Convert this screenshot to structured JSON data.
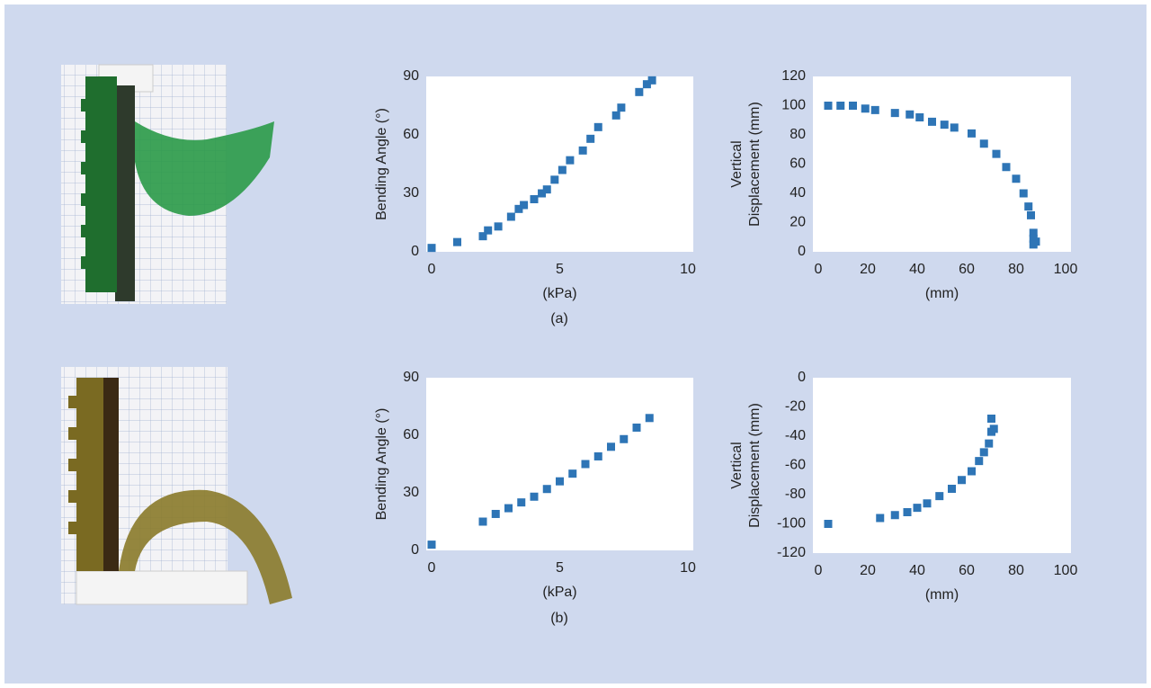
{
  "chart_data": [
    {
      "type": "scatter",
      "xlabel": "(kPa)",
      "ylabel": [
        "Bending Angle (°)"
      ],
      "color": "#2e75b6",
      "x": [
        0,
        1,
        2,
        2.2,
        2.6,
        3.1,
        3.4,
        3.6,
        4,
        4.3,
        4.5,
        4.8,
        5.1,
        5.4,
        5.9,
        6.2,
        6.5,
        7.2,
        7.4,
        8.1,
        8.4,
        8.6
      ],
      "values": [
        2,
        5,
        8,
        11,
        13,
        18,
        22,
        24,
        27,
        30,
        32,
        37,
        42,
        47,
        52,
        58,
        64,
        70,
        74,
        82,
        86,
        88
      ],
      "xlim": [
        0,
        10
      ],
      "xticks": [
        0,
        5,
        10
      ],
      "ylim": [
        0,
        90
      ],
      "yticks": [
        0,
        30,
        60,
        90
      ]
    },
    {
      "type": "scatter",
      "xlabel": "(mm)",
      "ylabel": [
        "Vertical",
        "Displacement (mm)"
      ],
      "color": "#2e75b6",
      "x": [
        4,
        9,
        14,
        19,
        23,
        31,
        37,
        41,
        46,
        51,
        55,
        62,
        67,
        72,
        76,
        80,
        83,
        85,
        86,
        87,
        87,
        88,
        87
      ],
      "values": [
        100,
        100,
        100,
        98,
        97,
        95,
        94,
        92,
        89,
        87,
        85,
        81,
        74,
        67,
        58,
        50,
        40,
        31,
        25,
        13,
        9,
        7,
        5
      ],
      "xlim": [
        0,
        100
      ],
      "xticks": [
        0,
        20,
        40,
        60,
        80,
        100
      ],
      "ylim": [
        0,
        120
      ],
      "yticks": [
        0,
        20,
        40,
        60,
        80,
        100,
        120
      ]
    },
    {
      "type": "scatter",
      "xlabel": "(kPa)",
      "ylabel": [
        "Bending Angle (°)"
      ],
      "color": "#2e75b6",
      "x": [
        0,
        2,
        2.5,
        3,
        3.5,
        4,
        4.5,
        5,
        5.5,
        6,
        6.5,
        7,
        7.5,
        8,
        8.5
      ],
      "values": [
        3,
        15,
        19,
        22,
        25,
        28,
        32,
        36,
        40,
        45,
        49,
        54,
        58,
        64,
        69
      ],
      "xlim": [
        0,
        10
      ],
      "xticks": [
        0,
        5,
        10
      ],
      "ylim": [
        0,
        90
      ],
      "yticks": [
        0,
        30,
        60,
        90
      ]
    },
    {
      "type": "scatter",
      "xlabel": "(mm)",
      "ylabel": [
        "Vertical",
        "Displacement (mm)"
      ],
      "color": "#2e75b6",
      "x": [
        4,
        25,
        31,
        36,
        40,
        44,
        49,
        54,
        58,
        62,
        65,
        67,
        69,
        70,
        71,
        70
      ],
      "values": [
        -100,
        -96,
        -94,
        -92,
        -89,
        -86,
        -81,
        -76,
        -70,
        -64,
        -57,
        -51,
        -45,
        -37,
        -35,
        -28
      ],
      "xlim": [
        0,
        100
      ],
      "xticks": [
        0,
        20,
        40,
        60,
        80,
        100
      ],
      "ylim": [
        -120,
        0
      ],
      "yticks": [
        -120,
        -100,
        -80,
        -60,
        -40,
        -20,
        0
      ]
    }
  ],
  "captions": [
    "(a)",
    "(b)"
  ]
}
